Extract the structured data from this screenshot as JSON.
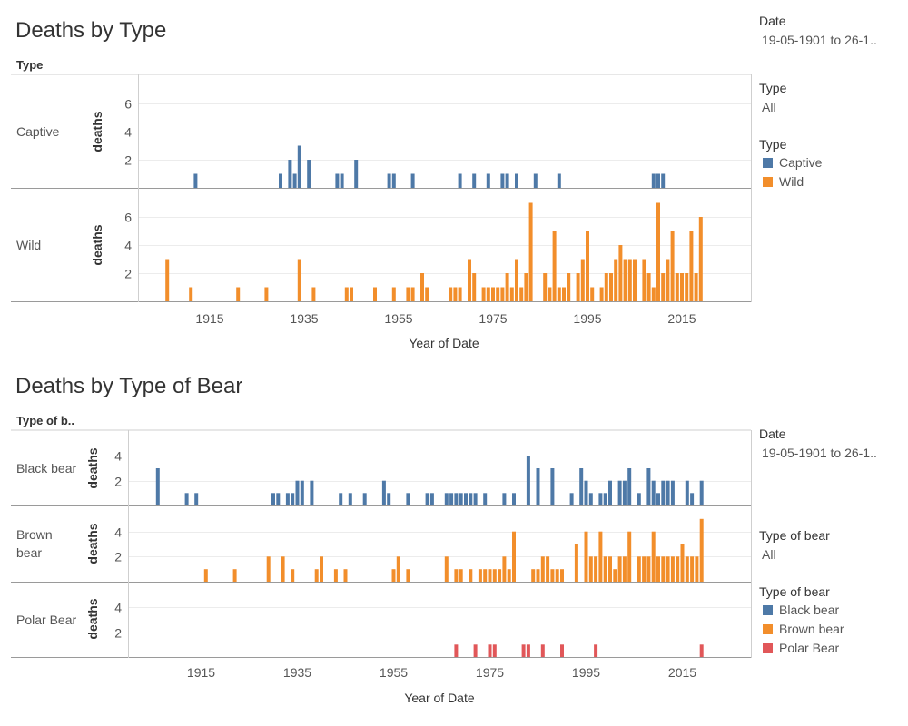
{
  "colors": {
    "captive": "#4e79a7",
    "wild": "#f28e2b",
    "black_bear": "#4e79a7",
    "brown_bear": "#f28e2b",
    "polar_bear": "#e15759"
  },
  "sidebar": {
    "top": {
      "date_label": "Date",
      "date_value": "19-05-1901 to 26-1..",
      "type_filter_label": "Type",
      "type_filter_value": "All",
      "legend_title": "Type",
      "legend_items": [
        {
          "label": "Captive",
          "color": "#4e79a7"
        },
        {
          "label": "Wild",
          "color": "#f28e2b"
        }
      ]
    },
    "bottom": {
      "date_label": "Date",
      "date_value": "19-05-1901 to 26-1..",
      "bear_filter_label": "Type of bear",
      "bear_filter_value": "All",
      "legend_title": "Type of bear",
      "legend_items": [
        {
          "label": "Black bear",
          "color": "#4e79a7"
        },
        {
          "label": "Brown bear",
          "color": "#f28e2b"
        },
        {
          "label": "Polar Bear",
          "color": "#e15759"
        }
      ]
    }
  },
  "chart_data": [
    {
      "type": "bar",
      "title": "Deaths by Type",
      "row_header": "Type",
      "xlabel": "Year of Date",
      "ylabel": "deaths",
      "x_ticks": [
        1915,
        1935,
        1955,
        1975,
        1995,
        2015
      ],
      "xlim": [
        1900,
        2020
      ],
      "grid": true,
      "legend": "right",
      "panels": [
        {
          "name": "Captive",
          "ylim": [
            0,
            8
          ],
          "y_ticks": [
            2,
            4,
            6
          ],
          "color": "#4e79a7",
          "x": [
            1912,
            1930,
            1932,
            1933,
            1934,
            1936,
            1942,
            1943,
            1946,
            1953,
            1954,
            1958,
            1968,
            1971,
            1974,
            1977,
            1978,
            1980,
            1984,
            1989,
            2009,
            2010,
            2011
          ],
          "values": [
            1,
            1,
            2,
            1,
            3,
            2,
            1,
            1,
            2,
            1,
            1,
            1,
            1,
            1,
            1,
            1,
            1,
            1,
            1,
            1,
            1,
            1,
            1
          ]
        },
        {
          "name": "Wild",
          "ylim": [
            0,
            8
          ],
          "y_ticks": [
            2,
            4,
            6
          ],
          "color": "#f28e2b",
          "x": [
            1906,
            1911,
            1921,
            1927,
            1934,
            1937,
            1944,
            1945,
            1950,
            1954,
            1957,
            1958,
            1960,
            1961,
            1966,
            1967,
            1968,
            1970,
            1971,
            1973,
            1974,
            1975,
            1976,
            1977,
            1978,
            1979,
            1980,
            1981,
            1982,
            1983,
            1986,
            1987,
            1988,
            1989,
            1990,
            1991,
            1993,
            1994,
            1995,
            1996,
            1998,
            1999,
            2000,
            2001,
            2002,
            2003,
            2004,
            2005,
            2007,
            2008,
            2009,
            2010,
            2011,
            2012,
            2013,
            2014,
            2015,
            2016,
            2017,
            2018,
            2019
          ],
          "values": [
            3,
            1,
            1,
            1,
            3,
            1,
            1,
            1,
            1,
            1,
            1,
            1,
            2,
            1,
            1,
            1,
            1,
            3,
            2,
            1,
            1,
            1,
            1,
            1,
            2,
            1,
            3,
            1,
            2,
            7,
            2,
            1,
            5,
            1,
            1,
            2,
            2,
            3,
            5,
            1,
            1,
            2,
            2,
            3,
            4,
            3,
            3,
            3,
            3,
            2,
            1,
            7,
            2,
            3,
            5,
            2,
            2,
            2,
            5,
            2,
            6
          ]
        }
      ]
    },
    {
      "type": "bar",
      "title": "Deaths by Type of Bear",
      "row_header": "Type of b..",
      "xlabel": "Year of Date",
      "ylabel": "deaths",
      "x_ticks": [
        1915,
        1935,
        1955,
        1975,
        1995,
        2015
      ],
      "xlim": [
        1900,
        2020
      ],
      "grid": true,
      "legend": "right",
      "panels": [
        {
          "name": "Black bear",
          "ylim": [
            0,
            6
          ],
          "y_ticks": [
            2,
            4
          ],
          "color": "#4e79a7",
          "x": [
            1906,
            1912,
            1914,
            1930,
            1931,
            1933,
            1934,
            1935,
            1936,
            1938,
            1944,
            1946,
            1949,
            1953,
            1954,
            1958,
            1962,
            1963,
            1966,
            1967,
            1968,
            1969,
            1970,
            1971,
            1972,
            1974,
            1978,
            1980,
            1983,
            1985,
            1988,
            1992,
            1994,
            1995,
            1996,
            1998,
            1999,
            2000,
            2002,
            2003,
            2004,
            2006,
            2008,
            2009,
            2010,
            2011,
            2012,
            2013,
            2016,
            2017,
            2019
          ],
          "values": [
            3,
            1,
            1,
            1,
            1,
            1,
            1,
            2,
            2,
            2,
            1,
            1,
            1,
            2,
            1,
            1,
            1,
            1,
            1,
            1,
            1,
            1,
            1,
            1,
            1,
            1,
            1,
            1,
            4,
            3,
            3,
            1,
            3,
            2,
            1,
            1,
            1,
            2,
            2,
            2,
            3,
            1,
            3,
            2,
            1,
            2,
            2,
            2,
            2,
            1,
            2
          ]
        },
        {
          "name": "Brown bear",
          "ylim": [
            0,
            6
          ],
          "y_ticks": [
            2,
            4
          ],
          "color": "#f28e2b",
          "x": [
            1916,
            1922,
            1929,
            1932,
            1934,
            1939,
            1940,
            1943,
            1945,
            1955,
            1956,
            1958,
            1966,
            1968,
            1969,
            1971,
            1973,
            1974,
            1975,
            1976,
            1977,
            1978,
            1979,
            1980,
            1984,
            1985,
            1986,
            1987,
            1988,
            1989,
            1990,
            1993,
            1995,
            1996,
            1997,
            1998,
            1999,
            2000,
            2001,
            2002,
            2003,
            2004,
            2006,
            2007,
            2008,
            2009,
            2010,
            2011,
            2012,
            2013,
            2014,
            2015,
            2016,
            2017,
            2018,
            2019
          ],
          "values": [
            1,
            1,
            2,
            2,
            1,
            1,
            2,
            1,
            1,
            1,
            2,
            1,
            2,
            1,
            1,
            1,
            1,
            1,
            1,
            1,
            1,
            2,
            1,
            4,
            1,
            1,
            2,
            2,
            1,
            1,
            1,
            3,
            4,
            2,
            2,
            4,
            2,
            2,
            1,
            2,
            2,
            4,
            2,
            2,
            2,
            4,
            2,
            2,
            2,
            2,
            2,
            3,
            2,
            2,
            2,
            5
          ]
        },
        {
          "name": "Polar Bear",
          "ylim": [
            0,
            6
          ],
          "y_ticks": [
            2,
            4
          ],
          "color": "#e15759",
          "x": [
            1968,
            1972,
            1975,
            1976,
            1982,
            1983,
            1986,
            1990,
            1997,
            2019
          ],
          "values": [
            1,
            1,
            1,
            1,
            1,
            1,
            1,
            1,
            1,
            1
          ]
        }
      ]
    }
  ]
}
